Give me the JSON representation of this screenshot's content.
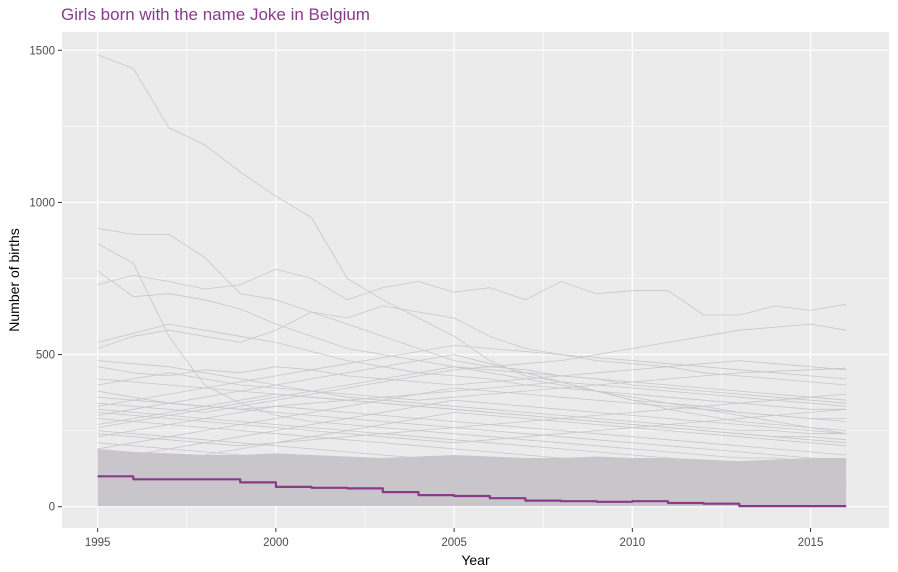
{
  "chart_data": {
    "type": "line",
    "title": "Girls born with the name Joke in Belgium",
    "xlabel": "Year",
    "ylabel": "Number of births",
    "xlim": [
      1994,
      2017.2
    ],
    "ylim": [
      -70,
      1560
    ],
    "x_ticks": [
      1995,
      2000,
      2005,
      2010,
      2015
    ],
    "y_ticks": [
      0,
      500,
      1000,
      1500
    ],
    "grid": true,
    "highlight_color": "#8b3a8b",
    "background_color": "#ebebeb",
    "other_color": "#c9c6cb",
    "x": [
      1995,
      1996,
      1997,
      1998,
      1999,
      2000,
      2001,
      2002,
      2003,
      2004,
      2005,
      2006,
      2007,
      2008,
      2009,
      2010,
      2011,
      2012,
      2013,
      2014,
      2015,
      2016
    ],
    "highlight_series": {
      "name": "Joke",
      "values": [
        100,
        90,
        90,
        90,
        80,
        65,
        62,
        60,
        48,
        38,
        35,
        28,
        20,
        18,
        16,
        18,
        12,
        10,
        2,
        2,
        2,
        2
      ]
    },
    "background_series": [
      {
        "values": [
          1485,
          1440,
          1245,
          1190,
          1100,
          1020,
          950,
          750,
          680,
          620,
          560,
          480,
          430,
          410,
          380,
          350,
          340,
          330,
          310,
          300,
          290,
          290
        ]
      },
      {
        "values": [
          915,
          895,
          895,
          820,
          700,
          680,
          640,
          600,
          560,
          520,
          480,
          460,
          450,
          430,
          420,
          400,
          390,
          380,
          370,
          360,
          350,
          340
        ]
      },
      {
        "values": [
          865,
          800,
          560,
          400,
          340,
          300,
          280,
          270,
          260,
          250,
          240,
          230,
          220,
          210,
          200,
          190,
          180,
          170,
          160,
          160,
          150,
          150
        ]
      },
      {
        "values": [
          775,
          690,
          700,
          680,
          650,
          600,
          560,
          520,
          500,
          480,
          460,
          450,
          440,
          430,
          420,
          410,
          400,
          390,
          380,
          370,
          360,
          350
        ]
      },
      {
        "values": [
          730,
          760,
          740,
          715,
          730,
          780,
          750,
          680,
          720,
          740,
          705,
          720,
          680,
          740,
          700,
          710,
          710,
          630,
          630,
          660,
          645,
          665
        ]
      },
      {
        "values": [
          540,
          570,
          600,
          580,
          560,
          540,
          510,
          480,
          460,
          440,
          430,
          420,
          400,
          390,
          380,
          370,
          360,
          350,
          340,
          330,
          320,
          320
        ]
      },
      {
        "values": [
          520,
          560,
          580,
          560,
          540,
          580,
          640,
          620,
          660,
          640,
          620,
          560,
          520,
          500,
          480,
          470,
          460,
          440,
          430,
          420,
          410,
          400
        ]
      },
      {
        "values": [
          480,
          470,
          460,
          440,
          420,
          400,
          380,
          360,
          350,
          340,
          330,
          320,
          310,
          300,
          290,
          280,
          270,
          260,
          250,
          250,
          240,
          240
        ]
      },
      {
        "values": [
          460,
          440,
          430,
          450,
          440,
          460,
          450,
          430,
          420,
          410,
          400,
          410,
          420,
          430,
          440,
          450,
          460,
          470,
          480,
          470,
          460,
          450
        ]
      },
      {
        "values": [
          420,
          410,
          400,
          390,
          380,
          370,
          360,
          350,
          340,
          330,
          320,
          310,
          300,
          290,
          280,
          270,
          260,
          250,
          240,
          230,
          230,
          220
        ]
      },
      {
        "values": [
          400,
          420,
          440,
          420,
          400,
          390,
          380,
          370,
          360,
          350,
          360,
          370,
          380,
          390,
          400,
          410,
          420,
          430,
          440,
          445,
          450,
          455
        ]
      },
      {
        "values": [
          380,
          360,
          340,
          330,
          320,
          330,
          340,
          350,
          360,
          370,
          380,
          390,
          400,
          410,
          400,
          390,
          380,
          370,
          360,
          350,
          340,
          330
        ]
      },
      {
        "values": [
          340,
          330,
          320,
          310,
          330,
          350,
          370,
          390,
          410,
          430,
          450,
          460,
          470,
          480,
          500,
          520,
          540,
          560,
          580,
          590,
          600,
          580
        ]
      },
      {
        "values": [
          320,
          310,
          300,
          290,
          280,
          270,
          260,
          250,
          240,
          230,
          220,
          210,
          200,
          190,
          180,
          170,
          160,
          150,
          140,
          140,
          130,
          130
        ]
      },
      {
        "values": [
          300,
          320,
          340,
          360,
          380,
          400,
          420,
          440,
          460,
          480,
          500,
          470,
          440,
          410,
          380,
          350,
          320,
          300,
          280,
          270,
          260,
          250
        ]
      },
      {
        "values": [
          290,
          280,
          270,
          260,
          250,
          240,
          230,
          220,
          210,
          200,
          190,
          180,
          170,
          160,
          150,
          140,
          130,
          120,
          110,
          100,
          100,
          95
        ]
      },
      {
        "values": [
          270,
          290,
          310,
          330,
          350,
          370,
          360,
          350,
          340,
          330,
          320,
          310,
          300,
          290,
          280,
          270,
          260,
          250,
          240,
          230,
          220,
          210
        ]
      },
      {
        "values": [
          250,
          240,
          230,
          220,
          210,
          200,
          190,
          180,
          170,
          160,
          150,
          140,
          130,
          120,
          110,
          100,
          90,
          80,
          70,
          60,
          60,
          55
        ]
      },
      {
        "values": [
          230,
          250,
          270,
          290,
          310,
          330,
          320,
          310,
          300,
          290,
          280,
          270,
          260,
          250,
          240,
          230,
          220,
          210,
          200,
          190,
          180,
          170
        ]
      },
      {
        "values": [
          210,
          200,
          190,
          180,
          170,
          160,
          150,
          140,
          130,
          120,
          110,
          100,
          90,
          80,
          70,
          60,
          55,
          50,
          45,
          40,
          40,
          35
        ]
      },
      {
        "values": [
          190,
          210,
          230,
          250,
          270,
          290,
          310,
          330,
          350,
          370,
          390,
          380,
          370,
          360,
          350,
          340,
          330,
          320,
          310,
          300,
          290,
          280
        ]
      },
      {
        "values": [
          170,
          160,
          150,
          140,
          130,
          120,
          110,
          100,
          90,
          80,
          70,
          60,
          50,
          45,
          40,
          35,
          30,
          25,
          20,
          20,
          18,
          16
        ]
      },
      {
        "values": [
          150,
          170,
          190,
          210,
          230,
          250,
          270,
          290,
          310,
          330,
          350,
          340,
          330,
          320,
          310,
          300,
          290,
          280,
          270,
          260,
          250,
          240
        ]
      },
      {
        "values": [
          130,
          120,
          110,
          100,
          90,
          80,
          70,
          60,
          55,
          50,
          45,
          40,
          35,
          30,
          28,
          26,
          24,
          22,
          20,
          18,
          16,
          15
        ]
      },
      {
        "values": [
          110,
          130,
          150,
          170,
          190,
          210,
          230,
          250,
          270,
          290,
          310,
          300,
          290,
          280,
          270,
          260,
          250,
          240,
          230,
          220,
          210,
          200
        ]
      },
      {
        "values": [
          330,
          350,
          370,
          390,
          410,
          430,
          450,
          470,
          490,
          510,
          530,
          520,
          510,
          500,
          490,
          480,
          470,
          460,
          450,
          440,
          430,
          420
        ]
      },
      {
        "values": [
          310,
          300,
          290,
          280,
          270,
          260,
          250,
          240,
          230,
          220,
          210,
          220,
          230,
          240,
          250,
          260,
          270,
          280,
          290,
          300,
          310,
          320
        ]
      },
      {
        "values": [
          260,
          280,
          300,
          320,
          340,
          360,
          380,
          400,
          420,
          440,
          460,
          440,
          420,
          400,
          380,
          360,
          340,
          320,
          300,
          280,
          260,
          240
        ]
      },
      {
        "values": [
          240,
          230,
          220,
          210,
          200,
          210,
          220,
          230,
          240,
          250,
          260,
          270,
          280,
          290,
          300,
          310,
          320,
          330,
          340,
          350,
          360,
          370
        ]
      },
      {
        "values": [
          360,
          350,
          340,
          330,
          320,
          310,
          300,
          290,
          280,
          270,
          260,
          250,
          240,
          230,
          220,
          210,
          200,
          190,
          180,
          170,
          160,
          150
        ]
      }
    ]
  }
}
